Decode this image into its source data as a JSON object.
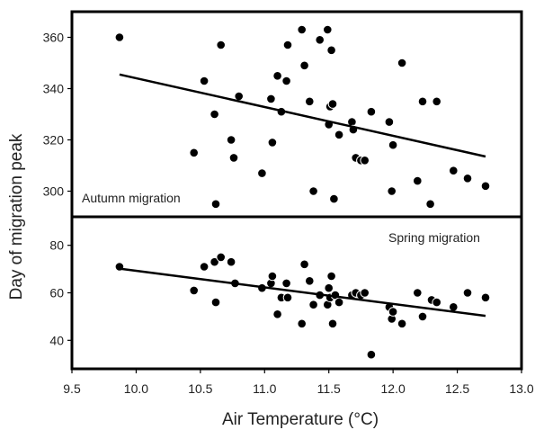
{
  "chart_data": [
    {
      "type": "scatter",
      "panel": "top",
      "annotation": "Autumn migration",
      "annotation_position": "bottom-left",
      "xlim": [
        9.5,
        13.0
      ],
      "ylim": [
        290,
        370
      ],
      "yticks": [
        300,
        320,
        340,
        360
      ],
      "grid": false,
      "points": [
        {
          "x": 9.87,
          "y": 360
        },
        {
          "x": 10.45,
          "y": 315
        },
        {
          "x": 10.53,
          "y": 343
        },
        {
          "x": 10.61,
          "y": 330
        },
        {
          "x": 10.62,
          "y": 295
        },
        {
          "x": 10.66,
          "y": 357
        },
        {
          "x": 10.74,
          "y": 320
        },
        {
          "x": 10.76,
          "y": 313
        },
        {
          "x": 10.8,
          "y": 337
        },
        {
          "x": 10.98,
          "y": 307
        },
        {
          "x": 11.05,
          "y": 336
        },
        {
          "x": 11.06,
          "y": 319
        },
        {
          "x": 11.1,
          "y": 345
        },
        {
          "x": 11.13,
          "y": 331
        },
        {
          "x": 11.17,
          "y": 343
        },
        {
          "x": 11.18,
          "y": 357
        },
        {
          "x": 11.29,
          "y": 363
        },
        {
          "x": 11.31,
          "y": 349
        },
        {
          "x": 11.35,
          "y": 335
        },
        {
          "x": 11.38,
          "y": 300
        },
        {
          "x": 11.43,
          "y": 359
        },
        {
          "x": 11.49,
          "y": 363
        },
        {
          "x": 11.5,
          "y": 326
        },
        {
          "x": 11.51,
          "y": 333
        },
        {
          "x": 11.52,
          "y": 355
        },
        {
          "x": 11.53,
          "y": 334
        },
        {
          "x": 11.54,
          "y": 297
        },
        {
          "x": 11.58,
          "y": 322
        },
        {
          "x": 11.68,
          "y": 327
        },
        {
          "x": 11.69,
          "y": 324
        },
        {
          "x": 11.71,
          "y": 313
        },
        {
          "x": 11.75,
          "y": 312
        },
        {
          "x": 11.78,
          "y": 312
        },
        {
          "x": 11.83,
          "y": 331
        },
        {
          "x": 11.97,
          "y": 327
        },
        {
          "x": 11.99,
          "y": 300
        },
        {
          "x": 12.0,
          "y": 318
        },
        {
          "x": 12.07,
          "y": 350
        },
        {
          "x": 12.19,
          "y": 304
        },
        {
          "x": 12.23,
          "y": 335
        },
        {
          "x": 12.29,
          "y": 295
        },
        {
          "x": 12.34,
          "y": 335
        },
        {
          "x": 12.47,
          "y": 308
        },
        {
          "x": 12.58,
          "y": 305
        },
        {
          "x": 12.72,
          "y": 302
        }
      ],
      "trendline": [
        {
          "x": 9.87,
          "y": 345.5
        },
        {
          "x": 12.72,
          "y": 313.5
        }
      ]
    },
    {
      "type": "scatter",
      "panel": "bottom",
      "annotation": "Spring migration",
      "annotation_position": "top-right",
      "xlim": [
        9.5,
        13.0
      ],
      "ylim": [
        28,
        92
      ],
      "yticks": [
        40,
        60,
        80
      ],
      "xticks": [
        "9.5",
        "10.0",
        "10.5",
        "11.0",
        "11.5",
        "12.0",
        "12.5",
        "13.0"
      ],
      "grid": false,
      "points": [
        {
          "x": 9.87,
          "y": 71
        },
        {
          "x": 10.45,
          "y": 61
        },
        {
          "x": 10.53,
          "y": 71
        },
        {
          "x": 10.61,
          "y": 73
        },
        {
          "x": 10.62,
          "y": 56
        },
        {
          "x": 10.66,
          "y": 75
        },
        {
          "x": 10.74,
          "y": 73
        },
        {
          "x": 10.77,
          "y": 64
        },
        {
          "x": 10.98,
          "y": 62
        },
        {
          "x": 11.05,
          "y": 64
        },
        {
          "x": 11.06,
          "y": 67
        },
        {
          "x": 11.1,
          "y": 51
        },
        {
          "x": 11.13,
          "y": 58
        },
        {
          "x": 11.17,
          "y": 64
        },
        {
          "x": 11.18,
          "y": 58
        },
        {
          "x": 11.29,
          "y": 47
        },
        {
          "x": 11.31,
          "y": 72
        },
        {
          "x": 11.35,
          "y": 65
        },
        {
          "x": 11.38,
          "y": 55
        },
        {
          "x": 11.43,
          "y": 59
        },
        {
          "x": 11.49,
          "y": 55
        },
        {
          "x": 11.5,
          "y": 62
        },
        {
          "x": 11.51,
          "y": 58
        },
        {
          "x": 11.52,
          "y": 67
        },
        {
          "x": 11.53,
          "y": 47
        },
        {
          "x": 11.55,
          "y": 59
        },
        {
          "x": 11.58,
          "y": 56
        },
        {
          "x": 11.68,
          "y": 59
        },
        {
          "x": 11.71,
          "y": 60
        },
        {
          "x": 11.75,
          "y": 59
        },
        {
          "x": 11.78,
          "y": 60
        },
        {
          "x": 11.83,
          "y": 34
        },
        {
          "x": 11.97,
          "y": 54
        },
        {
          "x": 11.99,
          "y": 49
        },
        {
          "x": 12.0,
          "y": 52
        },
        {
          "x": 12.07,
          "y": 47
        },
        {
          "x": 12.19,
          "y": 60
        },
        {
          "x": 12.23,
          "y": 50
        },
        {
          "x": 12.3,
          "y": 57
        },
        {
          "x": 12.34,
          "y": 56
        },
        {
          "x": 12.47,
          "y": 54
        },
        {
          "x": 12.58,
          "y": 60
        },
        {
          "x": 12.72,
          "y": 58
        }
      ],
      "trendline": [
        {
          "x": 9.87,
          "y": 70.2
        },
        {
          "x": 12.72,
          "y": 50.3
        }
      ]
    }
  ],
  "xlabel": "Air Temperature (°C)",
  "ylabel": "Day of migration peak",
  "colors": {
    "points": "#000000",
    "line": "#000000",
    "frame": "#000000"
  }
}
